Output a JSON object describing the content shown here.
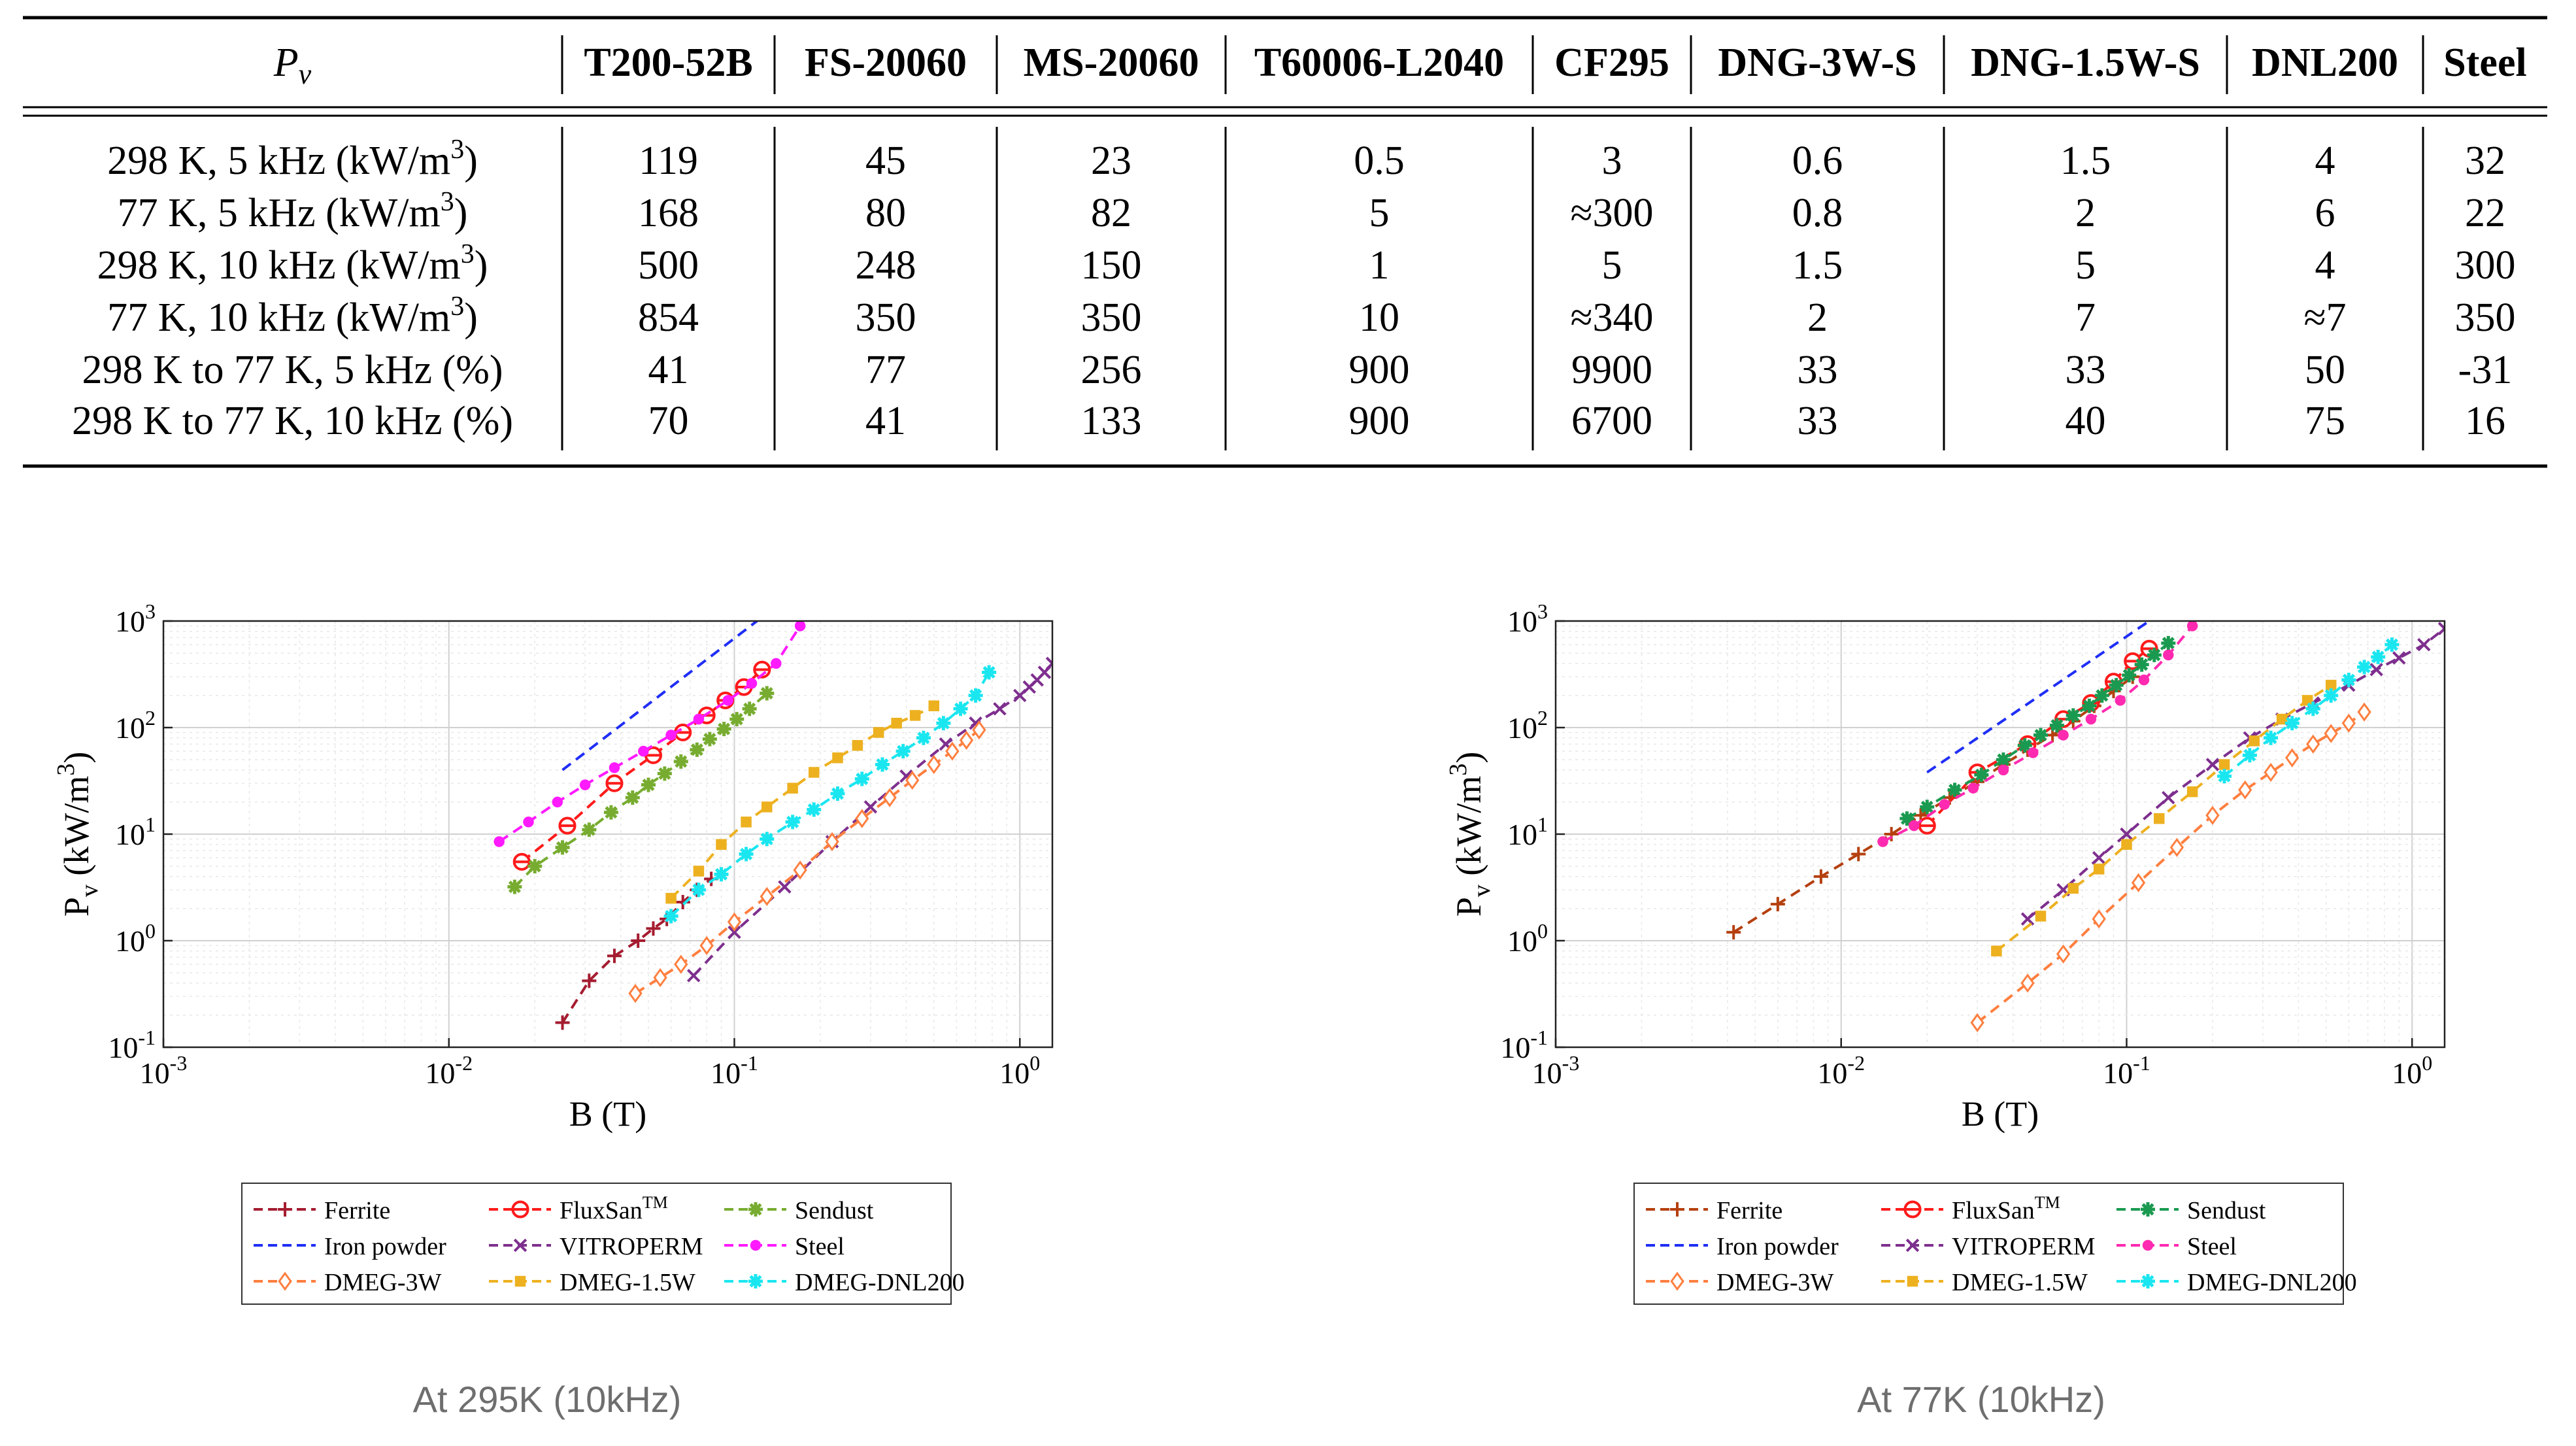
{
  "table": {
    "header_label": "P",
    "header_sub": "v",
    "columns": [
      "T200-52B",
      "FS-20060",
      "MS-20060",
      "T60006-L2040",
      "CF295",
      "DNG-3W-S",
      "DNG-1.5W-S",
      "DNL200",
      "Steel"
    ],
    "rows": [
      {
        "label": [
          "298 K, 5 kHz (kW/m",
          "3",
          ")"
        ],
        "values": [
          "119",
          "45",
          "23",
          "0.5",
          "3",
          "0.6",
          "1.5",
          "4",
          "32"
        ]
      },
      {
        "label": [
          "77 K, 5 kHz (kW/m",
          "3",
          ")"
        ],
        "values": [
          "168",
          "80",
          "82",
          "5",
          "≈300",
          "0.8",
          "2",
          "6",
          "22"
        ]
      },
      {
        "label": [
          "298 K, 10 kHz (kW/m",
          "3",
          ")"
        ],
        "values": [
          "500",
          "248",
          "150",
          "1",
          "5",
          "1.5",
          "5",
          "4",
          "300"
        ]
      },
      {
        "label": [
          "77 K, 10 kHz (kW/m",
          "3",
          ")"
        ],
        "values": [
          "854",
          "350",
          "350",
          "10",
          "≈340",
          "2",
          "7",
          "≈7",
          "350"
        ]
      },
      {
        "label": [
          "298 K to 77 K, 5 kHz (%)",
          "",
          ""
        ],
        "values": [
          "41",
          "77",
          "256",
          "900",
          "9900",
          "33",
          "33",
          "50",
          "-31"
        ]
      },
      {
        "label": [
          "298 K to 77 K, 10 kHz (%)",
          "",
          ""
        ],
        "values": [
          "70",
          "41",
          "133",
          "900",
          "6700",
          "33",
          "40",
          "75",
          "16"
        ]
      }
    ]
  },
  "captions": {
    "left": "At 295K (10kHz)",
    "right": "At 77K (10kHz)"
  },
  "chart_data": [
    {
      "type": "line",
      "xscale": "log",
      "yscale": "log",
      "xlim": [
        0.001,
        1.3
      ],
      "ylim": [
        0.1,
        1000
      ],
      "xlabel": "B (T)",
      "ylabel": "P_v (kW/m^3)",
      "grid": true,
      "legend_position": "below",
      "x_ticks": [
        "10^-3",
        "10^-2",
        "10^-1",
        "10^0"
      ],
      "y_ticks": [
        "10^-1",
        "10^0",
        "10^1",
        "10^2",
        "10^3"
      ],
      "series": [
        {
          "name": "Ferrite",
          "color": "#a51c30",
          "marker": "plus",
          "x": [
            0.025,
            0.031,
            0.038,
            0.046,
            0.052,
            0.058,
            0.066,
            0.074,
            0.083
          ],
          "y": [
            0.17,
            0.42,
            0.72,
            1.0,
            1.3,
            1.6,
            2.3,
            3.0,
            3.8
          ]
        },
        {
          "name": "FluxSan™",
          "color": "#ff1a1a",
          "marker": "circle",
          "x": [
            0.018,
            0.026,
            0.038,
            0.052,
            0.066,
            0.08,
            0.093,
            0.108,
            0.125
          ],
          "y": [
            5.5,
            12,
            30,
            55,
            90,
            130,
            180,
            240,
            350
          ]
        },
        {
          "name": "Sendust",
          "color": "#77ac30",
          "marker": "asterisk",
          "x": [
            0.017,
            0.02,
            0.025,
            0.031,
            0.037,
            0.044,
            0.05,
            0.057,
            0.065,
            0.074,
            0.082,
            0.092,
            0.102,
            0.113,
            0.13
          ],
          "y": [
            3.2,
            5,
            7.5,
            11,
            16,
            22,
            29,
            37,
            48,
            62,
            78,
            97,
            120,
            150,
            210
          ]
        },
        {
          "name": "Iron powder",
          "color": "#1f2ef5",
          "marker": "none",
          "x": [
            0.025,
            0.12
          ],
          "y": [
            40,
            1000
          ]
        },
        {
          "name": "VITROPERM",
          "color": "#7e2f8e",
          "marker": "x",
          "x": [
            0.072,
            0.1,
            0.15,
            0.22,
            0.3,
            0.4,
            0.55,
            0.7,
            0.85,
            1.0,
            1.08,
            1.15,
            1.22,
            1.3
          ],
          "y": [
            0.47,
            1.2,
            3.2,
            8.5,
            18,
            35,
            70,
            110,
            150,
            200,
            240,
            280,
            330,
            400
          ]
        },
        {
          "name": "Steel",
          "color": "#ff1aff",
          "marker": "dot",
          "x": [
            0.015,
            0.019,
            0.024,
            0.03,
            0.038,
            0.048,
            0.06,
            0.075,
            0.095,
            0.115,
            0.14,
            0.17
          ],
          "y": [
            8.5,
            13,
            20,
            29,
            42,
            60,
            85,
            120,
            180,
            260,
            400,
            900
          ]
        },
        {
          "name": "DMEG-3W",
          "color": "#ff7f3f",
          "marker": "diamond",
          "x": [
            0.045,
            0.055,
            0.065,
            0.08,
            0.1,
            0.13,
            0.17,
            0.22,
            0.28,
            0.35,
            0.42,
            0.5,
            0.58,
            0.65,
            0.72
          ],
          "y": [
            0.32,
            0.45,
            0.6,
            0.9,
            1.5,
            2.6,
            4.6,
            8.5,
            14,
            22,
            32,
            45,
            60,
            76,
            95
          ]
        },
        {
          "name": "DMEG-1.5W",
          "color": "#edb120",
          "marker": "square",
          "x": [
            0.06,
            0.075,
            0.09,
            0.11,
            0.13,
            0.16,
            0.19,
            0.23,
            0.27,
            0.32,
            0.37,
            0.43,
            0.5
          ],
          "y": [
            2.5,
            4.5,
            8,
            13,
            18,
            27,
            38,
            52,
            68,
            90,
            110,
            130,
            160
          ]
        },
        {
          "name": "DMEG-DNL200",
          "color": "#1ae6f0",
          "marker": "star",
          "x": [
            0.06,
            0.075,
            0.09,
            0.11,
            0.13,
            0.16,
            0.19,
            0.23,
            0.28,
            0.33,
            0.39,
            0.46,
            0.54,
            0.62,
            0.7,
            0.78
          ],
          "y": [
            1.7,
            3,
            4.2,
            6.5,
            9,
            13,
            17,
            24,
            33,
            45,
            60,
            80,
            110,
            150,
            200,
            330
          ]
        }
      ]
    },
    {
      "type": "line",
      "xscale": "log",
      "yscale": "log",
      "xlim": [
        0.001,
        1.3
      ],
      "ylim": [
        0.1,
        1000
      ],
      "xlabel": "B (T)",
      "ylabel": "P_v (kW/m^3)",
      "grid": true,
      "legend_position": "below",
      "x_ticks": [
        "10^-3",
        "10^-2",
        "10^-1",
        "10^0"
      ],
      "y_ticks": [
        "10^-1",
        "10^0",
        "10^1",
        "10^2",
        "10^3"
      ],
      "series": [
        {
          "name": "Ferrite",
          "color": "#b5400f",
          "marker": "plus",
          "x": [
            0.0042,
            0.006,
            0.0085,
            0.0115,
            0.015,
            0.019,
            0.024,
            0.03,
            0.037,
            0.045,
            0.055,
            0.065,
            0.077,
            0.09,
            0.105
          ],
          "y": [
            1.2,
            2.2,
            4,
            6.5,
            10,
            15,
            22,
            31,
            45,
            62,
            85,
            115,
            160,
            220,
            300
          ]
        },
        {
          "name": "FluxSan™",
          "color": "#ff1a1a",
          "marker": "circle",
          "x": [
            0.02,
            0.03,
            0.045,
            0.06,
            0.075,
            0.09,
            0.105,
            0.12
          ],
          "y": [
            12,
            38,
            70,
            120,
            170,
            270,
            420,
            550
          ]
        },
        {
          "name": "Sendust",
          "color": "#1a9a50",
          "marker": "asterisk",
          "x": [
            0.017,
            0.02,
            0.025,
            0.031,
            0.037,
            0.044,
            0.05,
            0.057,
            0.065,
            0.074,
            0.082,
            0.092,
            0.102,
            0.113,
            0.125,
            0.14
          ],
          "y": [
            14,
            18,
            26,
            36,
            50,
            68,
            85,
            105,
            130,
            160,
            200,
            250,
            310,
            390,
            480,
            620
          ]
        },
        {
          "name": "Iron powder",
          "color": "#1f2ef5",
          "marker": "none",
          "x": [
            0.02,
            0.12
          ],
          "y": [
            38,
            1000
          ]
        },
        {
          "name": "VITROPERM",
          "color": "#7e2f8e",
          "marker": "x",
          "x": [
            0.045,
            0.06,
            0.08,
            0.1,
            0.14,
            0.2,
            0.27,
            0.35,
            0.45,
            0.6,
            0.75,
            0.9,
            1.1,
            1.3
          ],
          "y": [
            1.6,
            3,
            6,
            10,
            22,
            45,
            80,
            120,
            170,
            250,
            350,
            450,
            600,
            850
          ]
        },
        {
          "name": "Steel",
          "color": "#ff2ab0",
          "marker": "dot",
          "x": [
            0.014,
            0.018,
            0.023,
            0.029,
            0.037,
            0.047,
            0.06,
            0.075,
            0.095,
            0.115,
            0.14,
            0.17
          ],
          "y": [
            8.5,
            12,
            19,
            27,
            40,
            58,
            85,
            120,
            180,
            280,
            480,
            900
          ]
        },
        {
          "name": "DMEG-3W",
          "color": "#ff7f3f",
          "marker": "diamond",
          "x": [
            0.03,
            0.045,
            0.06,
            0.08,
            0.11,
            0.15,
            0.2,
            0.26,
            0.32,
            0.38,
            0.45,
            0.52,
            0.6,
            0.68
          ],
          "y": [
            0.17,
            0.4,
            0.75,
            1.6,
            3.5,
            7.5,
            15,
            26,
            38,
            52,
            70,
            88,
            110,
            140
          ]
        },
        {
          "name": "DMEG-1.5W",
          "color": "#edb120",
          "marker": "square",
          "x": [
            0.035,
            0.05,
            0.065,
            0.08,
            0.1,
            0.13,
            0.17,
            0.22,
            0.28,
            0.35,
            0.43,
            0.52
          ],
          "y": [
            0.8,
            1.7,
            3.1,
            4.7,
            8,
            14,
            25,
            45,
            75,
            120,
            180,
            250
          ]
        },
        {
          "name": "DMEG-DNL200",
          "color": "#1ae6f0",
          "marker": "star",
          "x": [
            0.22,
            0.27,
            0.32,
            0.38,
            0.45,
            0.52,
            0.6,
            0.68,
            0.76,
            0.85
          ],
          "y": [
            35,
            55,
            80,
            110,
            150,
            200,
            280,
            370,
            460,
            600
          ]
        }
      ]
    }
  ]
}
